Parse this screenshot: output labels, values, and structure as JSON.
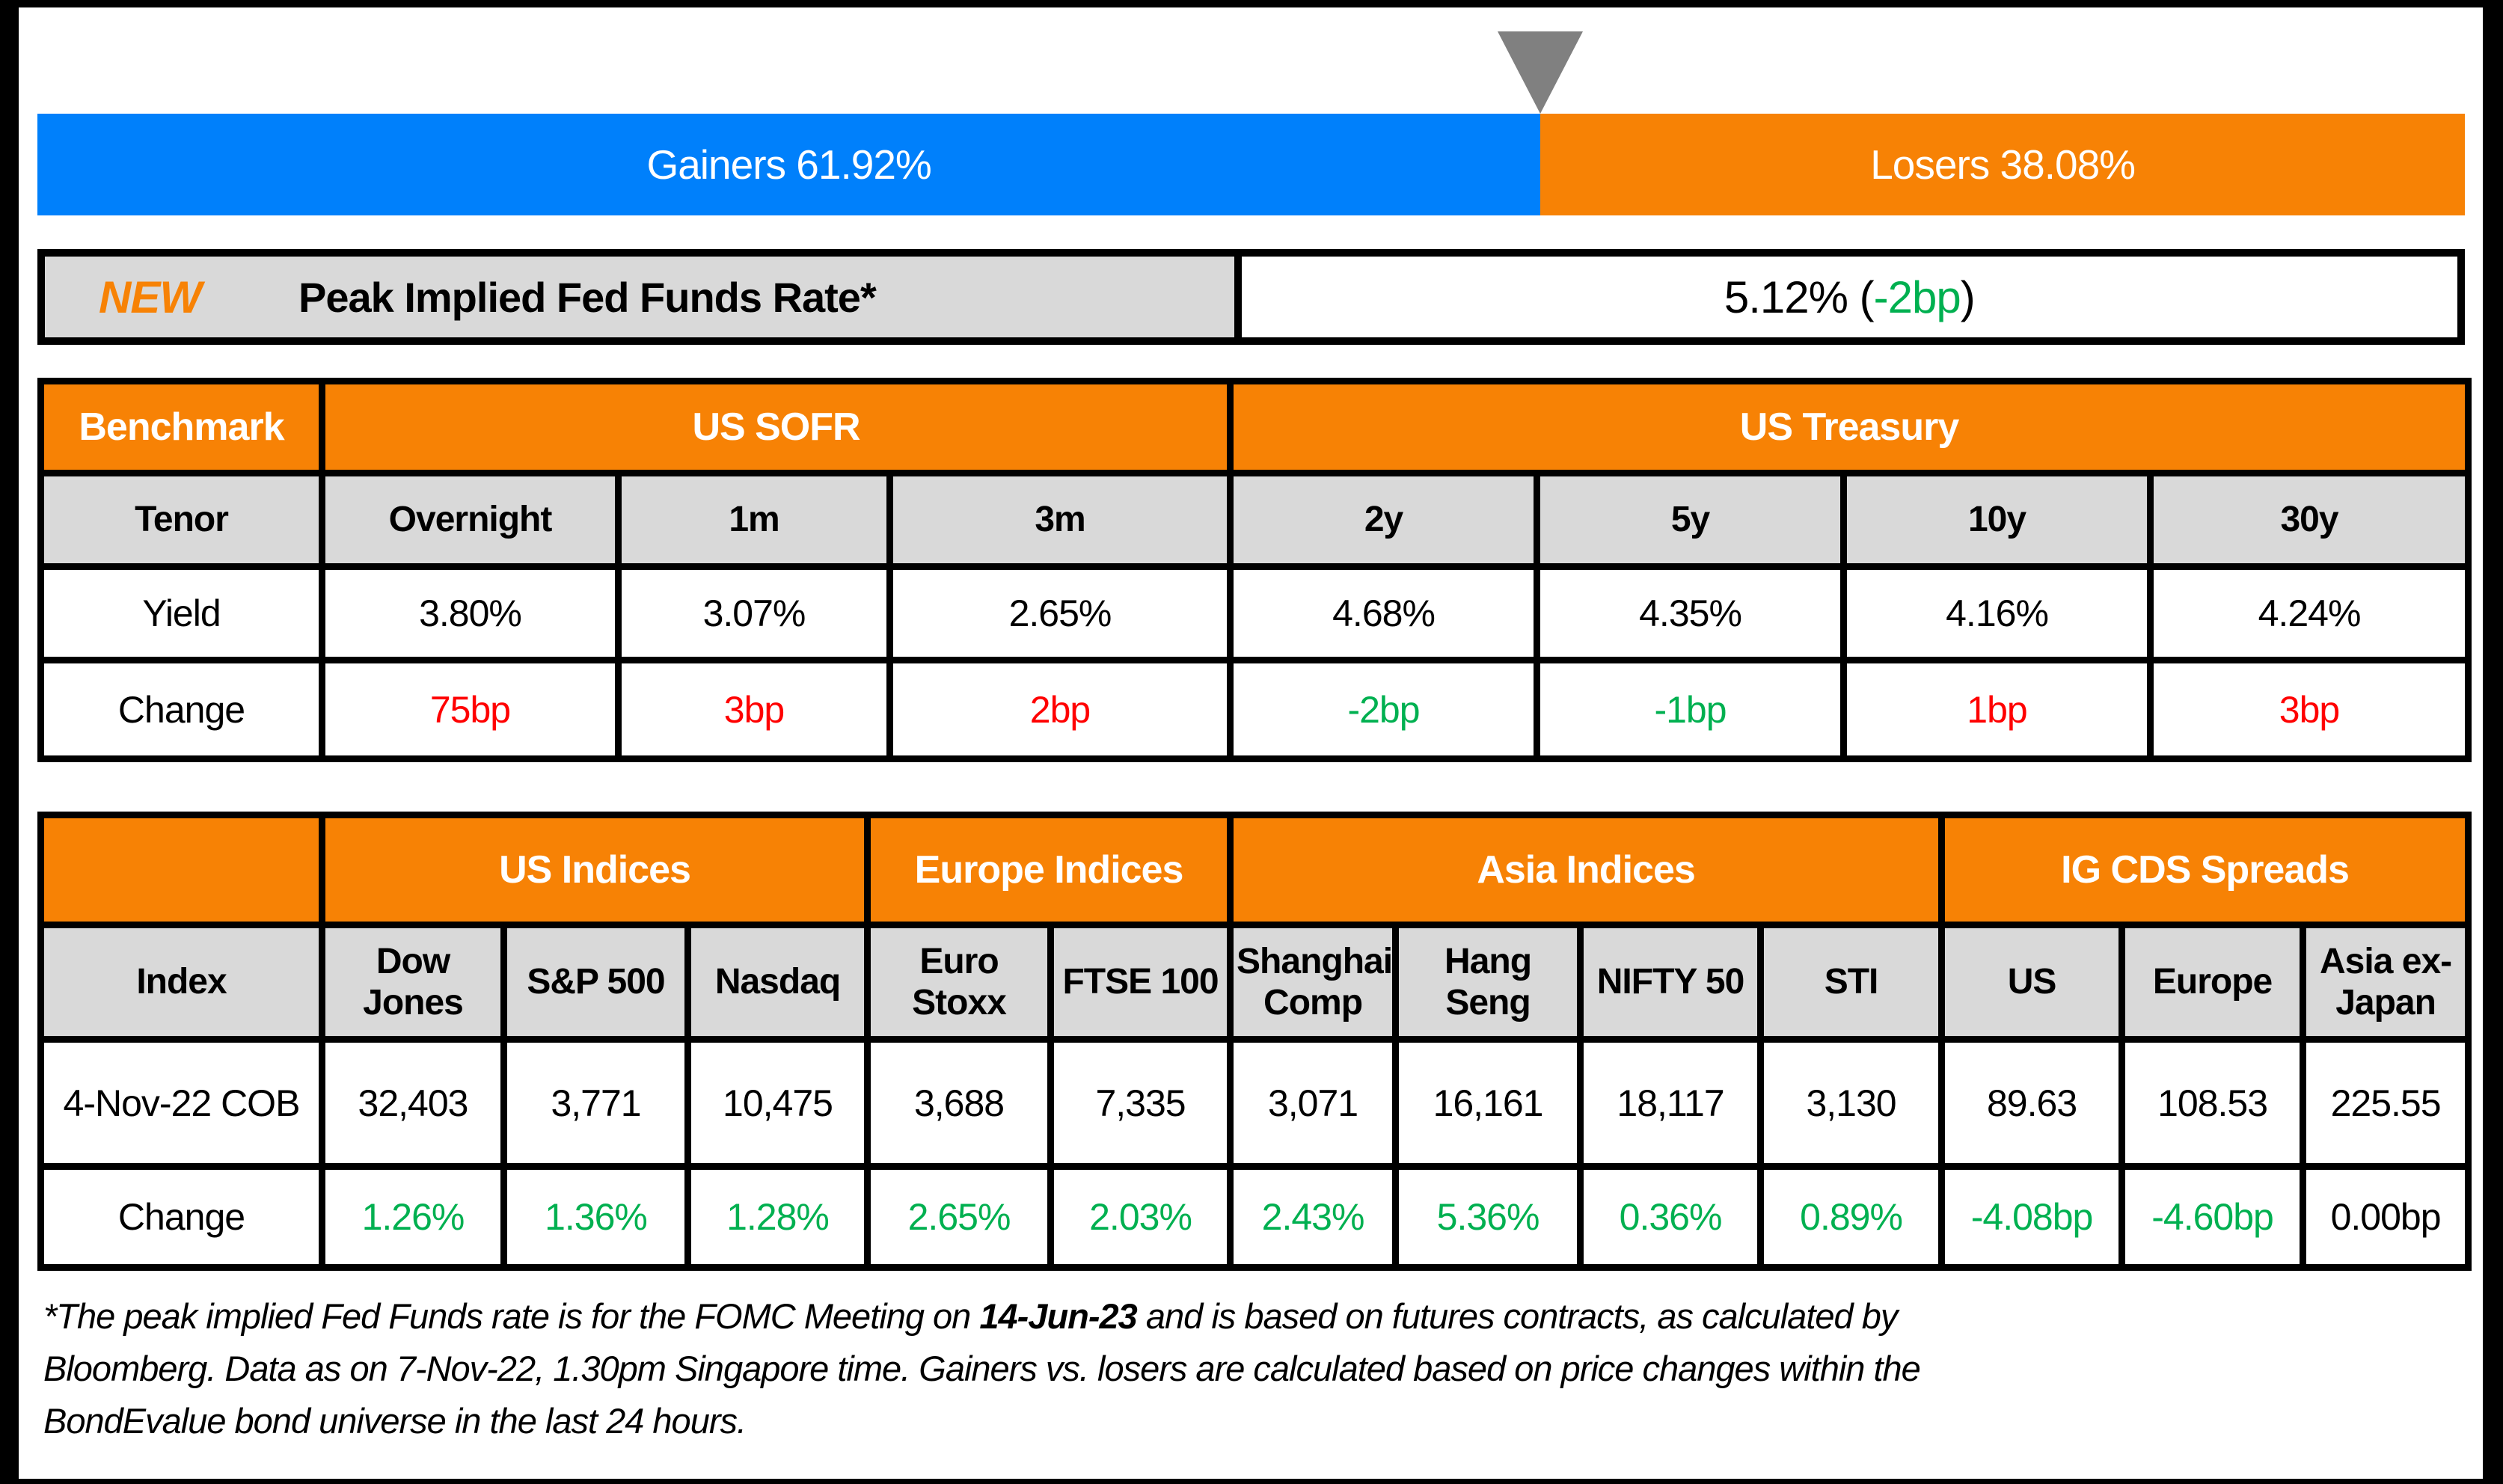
{
  "colors": {
    "blue": "#0080FB",
    "orange": "#F78205",
    "gray-cell": "#D9D9D9",
    "marker-gray": "#808080",
    "red": "#FF0000",
    "green": "#00B050"
  },
  "gainers_losers": {
    "gainers_label": "Gainers 61.92%",
    "losers_label": "Losers 38.08%",
    "gainers_pct": 61.92,
    "losers_pct": 38.08
  },
  "peak_rate": {
    "badge": "NEW",
    "label": "Peak Implied Fed Funds Rate*",
    "value_prefix": "5.12% (",
    "value_change": "-2bp",
    "value_suffix": ")"
  },
  "benchmark_table": {
    "corner_label": "Benchmark",
    "groups": [
      {
        "label": "US SOFR"
      },
      {
        "label": "US Treasury"
      }
    ],
    "row_labels": {
      "tenor": "Tenor",
      "yield": "Yield",
      "change": "Change"
    },
    "columns": [
      {
        "tenor": "Overnight",
        "yield": "3.80%",
        "change": "75bp",
        "change_color": "red"
      },
      {
        "tenor": "1m",
        "yield": "3.07%",
        "change": "3bp",
        "change_color": "red"
      },
      {
        "tenor": "3m",
        "yield": "2.65%",
        "change": "2bp",
        "change_color": "red"
      },
      {
        "tenor": "2y",
        "yield": "4.68%",
        "change": "-2bp",
        "change_color": "green"
      },
      {
        "tenor": "5y",
        "yield": "4.35%",
        "change": "-1bp",
        "change_color": "green"
      },
      {
        "tenor": "10y",
        "yield": "4.16%",
        "change": "1bp",
        "change_color": "red"
      },
      {
        "tenor": "30y",
        "yield": "4.24%",
        "change": "3bp",
        "change_color": "red"
      }
    ]
  },
  "indices_table": {
    "groups": [
      {
        "label": "US Indices"
      },
      {
        "label": "Europe Indices"
      },
      {
        "label": "Asia Indices"
      },
      {
        "label": "IG CDS Spreads"
      }
    ],
    "row_labels": {
      "index": "Index",
      "cob": "4-Nov-22 COB",
      "change": "Change"
    },
    "columns": [
      {
        "name": "Dow Jones",
        "cob": "32,403",
        "change": "1.26%",
        "change_color": "green"
      },
      {
        "name": "S&P 500",
        "cob": "3,771",
        "change": "1.36%",
        "change_color": "green"
      },
      {
        "name": "Nasdaq",
        "cob": "10,475",
        "change": "1.28%",
        "change_color": "green"
      },
      {
        "name": "Euro Stoxx",
        "cob": "3,688",
        "change": "2.65%",
        "change_color": "green"
      },
      {
        "name": "FTSE 100",
        "cob": "7,335",
        "change": "2.03%",
        "change_color": "green"
      },
      {
        "name": "Shanghai Comp",
        "cob": "3,071",
        "change": "2.43%",
        "change_color": "green"
      },
      {
        "name": "Hang Seng",
        "cob": "16,161",
        "change": "5.36%",
        "change_color": "green"
      },
      {
        "name": "NIFTY 50",
        "cob": "18,117",
        "change": "0.36%",
        "change_color": "green"
      },
      {
        "name": "STI",
        "cob": "3,130",
        "change": "0.89%",
        "change_color": "green"
      },
      {
        "name": "US",
        "cob": "89.63",
        "change": "-4.08bp",
        "change_color": "green"
      },
      {
        "name": "Europe",
        "cob": "108.53",
        "change": "-4.60bp",
        "change_color": "green"
      },
      {
        "name": "Asia ex-Japan",
        "cob": "225.55",
        "change": "0.00bp",
        "change_color": "black"
      }
    ]
  },
  "footnote": {
    "line1_pre": "*The peak implied Fed Funds rate is for the FOMC Meeting on ",
    "line1_bold": "14-Jun-23",
    "line1_post": " and is based on futures contracts, as calculated by",
    "line2": "Bloomberg. Data as on 7-Nov-22, 1.30pm Singapore time. Gainers vs. losers are calculated based on price changes within the",
    "line3": "BondEvalue bond universe in the last 24 hours."
  },
  "chart_data": [
    {
      "type": "bar",
      "title": "Gainers vs Losers",
      "orientation": "horizontal-stacked",
      "categories": [
        "Gainers",
        "Losers"
      ],
      "values": [
        61.92,
        38.08
      ],
      "unit": "%",
      "colors": [
        "#0080FB",
        "#F78205"
      ]
    },
    {
      "type": "table",
      "title": "Benchmark",
      "column_groups": {
        "US SOFR": [
          "Overnight",
          "1m",
          "3m"
        ],
        "US Treasury": [
          "2y",
          "5y",
          "10y",
          "30y"
        ]
      },
      "columns": [
        "Tenor",
        "Overnight",
        "1m",
        "3m",
        "2y",
        "5y",
        "10y",
        "30y"
      ],
      "rows": [
        [
          "Yield",
          "3.80%",
          "3.07%",
          "2.65%",
          "4.68%",
          "4.35%",
          "4.16%",
          "4.24%"
        ],
        [
          "Change",
          "75bp",
          "3bp",
          "2bp",
          "-2bp",
          "-1bp",
          "1bp",
          "3bp"
        ]
      ]
    },
    {
      "type": "table",
      "title": "Indices and IG CDS Spreads",
      "column_groups": {
        "US Indices": [
          "Dow Jones",
          "S&P 500",
          "Nasdaq"
        ],
        "Europe Indices": [
          "Euro Stoxx",
          "FTSE 100"
        ],
        "Asia Indices": [
          "Shanghai Comp",
          "Hang Seng",
          "NIFTY 50",
          "STI"
        ],
        "IG CDS Spreads": [
          "US",
          "Europe",
          "Asia ex-Japan"
        ]
      },
      "columns": [
        "Index",
        "Dow Jones",
        "S&P 500",
        "Nasdaq",
        "Euro Stoxx",
        "FTSE 100",
        "Shanghai Comp",
        "Hang Seng",
        "NIFTY 50",
        "STI",
        "US",
        "Europe",
        "Asia ex-Japan"
      ],
      "rows": [
        [
          "4-Nov-22 COB",
          "32,403",
          "3,771",
          "10,475",
          "3,688",
          "7,335",
          "3,071",
          "16,161",
          "18,117",
          "3,130",
          "89.63",
          "108.53",
          "225.55"
        ],
        [
          "Change",
          "1.26%",
          "1.36%",
          "1.28%",
          "2.65%",
          "2.03%",
          "2.43%",
          "5.36%",
          "0.36%",
          "0.89%",
          "-4.08bp",
          "-4.60bp",
          "0.00bp"
        ]
      ]
    }
  ]
}
